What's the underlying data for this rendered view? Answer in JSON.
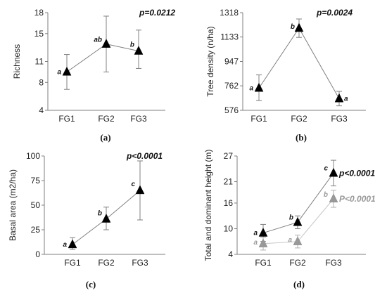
{
  "chart_data": [
    {
      "type": "scatter",
      "panel": "(a)",
      "xlabel": "",
      "ylabel": "Richness",
      "categories": [
        "FG1",
        "FG2",
        "FG3"
      ],
      "yticks": [
        4,
        8,
        11,
        15,
        18
      ],
      "ylim": [
        4,
        18
      ],
      "p_value": "p=0.0212",
      "series": [
        {
          "values": [
            9.5,
            13.5,
            12.5
          ],
          "err_low": [
            7.0,
            9.5,
            10.0
          ],
          "err_high": [
            12.0,
            17.5,
            15.5
          ],
          "letters": [
            "a",
            "ab",
            "b"
          ],
          "color": "#000000"
        }
      ]
    },
    {
      "type": "scatter",
      "panel": "(b)",
      "xlabel": "",
      "ylabel": "Tree density (n/ha)",
      "categories": [
        "FG1",
        "FG2",
        "FG3"
      ],
      "yticks": [
        576,
        762,
        947,
        1133,
        1318
      ],
      "ylim": [
        576,
        1318
      ],
      "p_value": "p=0.0024",
      "series": [
        {
          "values": [
            745,
            1200,
            665
          ],
          "err_low": [
            650,
            1130,
            610
          ],
          "err_high": [
            845,
            1270,
            720
          ],
          "letters": [
            "a",
            "b",
            "a"
          ],
          "color": "#000000"
        }
      ]
    },
    {
      "type": "scatter",
      "panel": "(c)",
      "xlabel": "",
      "ylabel": "Basal area (m2/ha)",
      "categories": [
        "FG1",
        "FG2",
        "FG3"
      ],
      "yticks": [
        0,
        25,
        50,
        75,
        100
      ],
      "ylim": [
        0,
        100
      ],
      "p_value": "p<0.0001",
      "series": [
        {
          "values": [
            10,
            36,
            65
          ],
          "err_low": [
            5,
            25,
            35
          ],
          "err_high": [
            17,
            48,
            95
          ],
          "letters": [
            "a",
            "b",
            "c"
          ],
          "color": "#000000"
        }
      ]
    },
    {
      "type": "scatter",
      "panel": "(d)",
      "xlabel": "",
      "ylabel": "Total and dominant height (m)",
      "categories": [
        "FG1",
        "FG2",
        "FG3"
      ],
      "yticks": [
        4,
        10,
        16,
        21,
        27
      ],
      "ylim": [
        4,
        27
      ],
      "series": [
        {
          "values": [
            9,
            11.5,
            23
          ],
          "err_low": [
            7.0,
            10.0,
            20.0
          ],
          "err_high": [
            11.0,
            13.0,
            26.0
          ],
          "letters": [
            "a",
            "b",
            "c"
          ],
          "p_value": "p<0.0001",
          "color": "#000000"
        },
        {
          "values": [
            6.5,
            7.0,
            17.0
          ],
          "err_low": [
            5.0,
            5.5,
            15.0
          ],
          "err_high": [
            8.0,
            8.5,
            19.0
          ],
          "letters": [
            "a",
            "a",
            "b"
          ],
          "p_value": "P<0.0001",
          "color": "#999999"
        }
      ]
    }
  ]
}
